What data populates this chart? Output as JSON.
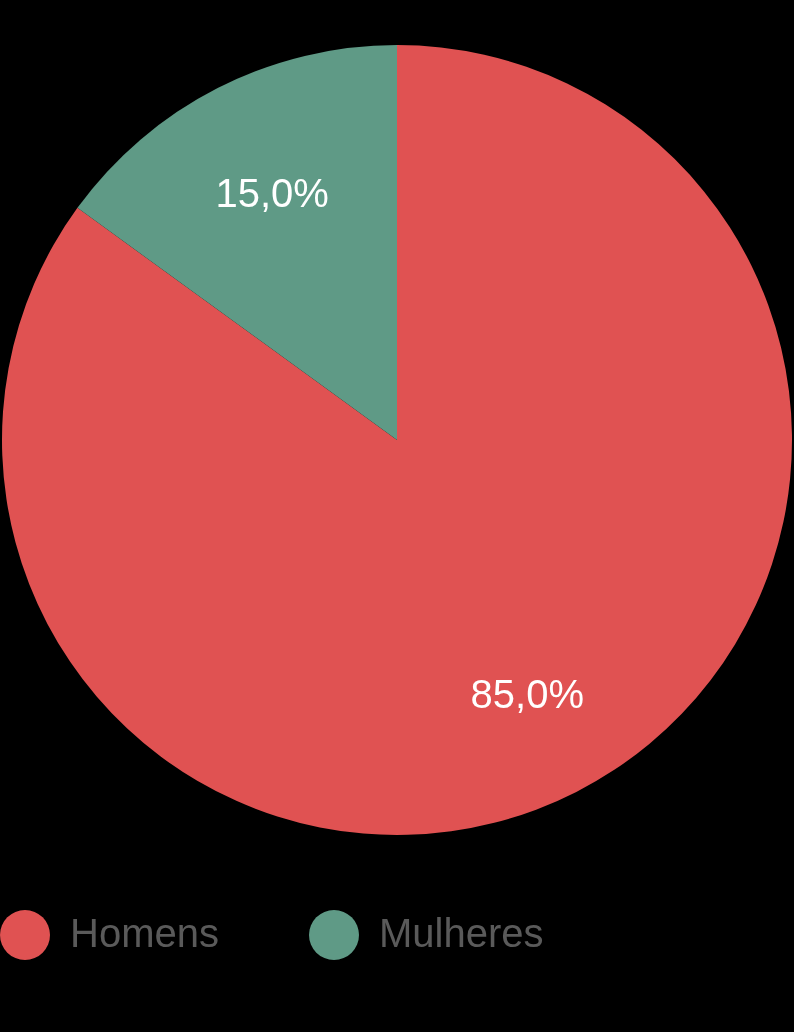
{
  "chart_data": {
    "type": "pie",
    "categories": [
      "Homens",
      "Mulheres"
    ],
    "values": [
      85,
      15
    ],
    "colors": [
      "#e05252",
      "#5f9a86"
    ],
    "value_labels": [
      "85,0%",
      "15,0%"
    ],
    "legend": "bottom"
  }
}
